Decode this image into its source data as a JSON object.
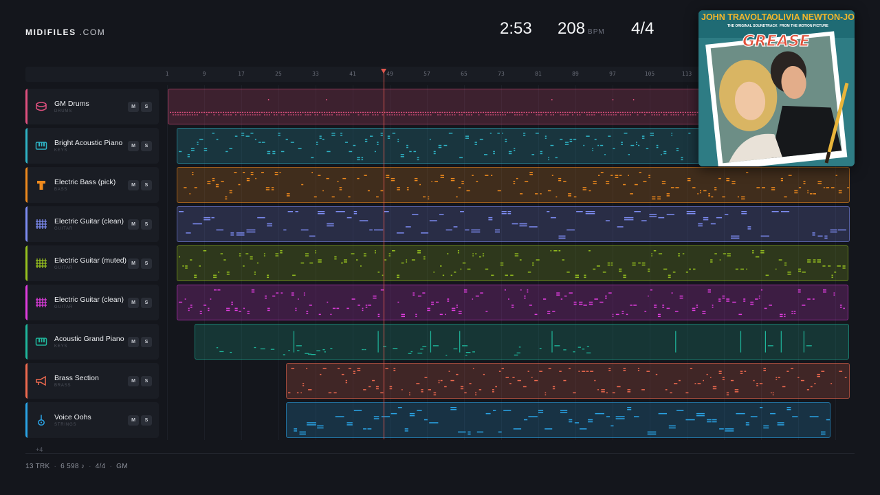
{
  "brand": {
    "name": "MIDIFILES",
    "suffix": ".COM"
  },
  "stats": {
    "time": "2:53",
    "bpm": "208",
    "bpm_unit": "BPM",
    "time_signature": "4/4"
  },
  "ruler": {
    "ticks": [
      "1",
      "9",
      "17",
      "25",
      "33",
      "41",
      "49",
      "57",
      "65",
      "73",
      "81",
      "89",
      "97",
      "105",
      "113"
    ]
  },
  "tracks": [
    {
      "name": "GM Drums",
      "category": "DRUMS",
      "color": "#e0507f",
      "icon": "drum-icon",
      "mute": "M",
      "solo": "S"
    },
    {
      "name": "Bright Acoustic Piano",
      "category": "KEYS",
      "color": "#2fb4c6",
      "icon": "piano-keys-icon",
      "mute": "M",
      "solo": "S"
    },
    {
      "name": "Electric Bass (pick)",
      "category": "BASS",
      "color": "#ef8a1d",
      "icon": "bass-icon",
      "mute": "M",
      "solo": "S"
    },
    {
      "name": "Electric Guitar (clean)",
      "category": "GUITAR",
      "color": "#7d8cf2",
      "icon": "guitar-fretboard-icon",
      "mute": "M",
      "solo": "S"
    },
    {
      "name": "Electric Guitar (muted)",
      "category": "GUITAR",
      "color": "#97c21f",
      "icon": "guitar-fretboard-icon",
      "mute": "M",
      "solo": "S"
    },
    {
      "name": "Electric Guitar (clean)",
      "category": "GUITAR",
      "color": "#e13de0",
      "icon": "guitar-fretboard-icon",
      "mute": "M",
      "solo": "S"
    },
    {
      "name": "Acoustic Grand Piano",
      "category": "KEYS",
      "color": "#1fb79c",
      "icon": "piano-keys-icon",
      "mute": "M",
      "solo": "S"
    },
    {
      "name": "Brass Section",
      "category": "BRASS",
      "color": "#ef6a4f",
      "icon": "trumpet-icon",
      "mute": "M",
      "solo": "S"
    },
    {
      "name": "Voice Oohs",
      "category": "STRINGS",
      "color": "#2aa4e6",
      "icon": "violin-icon",
      "mute": "M",
      "solo": "S"
    }
  ],
  "more_tracks": "+4",
  "footer": {
    "tracks": "13 TRK",
    "notes": "6 598 ♪",
    "signature": "4/4",
    "standard": "GM"
  },
  "cover": {
    "artist_left": "JOHN TRAVOLTA",
    "artist_right": "OLIVIA NEWTON-JOHN",
    "subtitle_left": "THE ORIGINAL SOUNDTRACK",
    "subtitle_right": "FROM THE MOTION PICTURE",
    "title": "GREASE"
  }
}
